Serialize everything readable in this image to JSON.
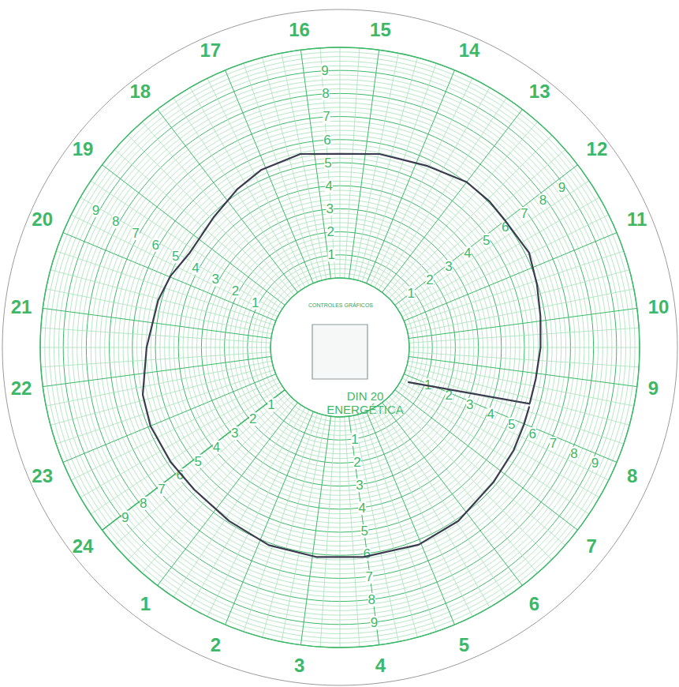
{
  "chart_data": {
    "type": "line",
    "title": "DIN 20",
    "subtitle": "ENERGÉTICA",
    "annotations": [
      "CONTROLES GRÁFICOS"
    ],
    "xlim": [
      0,
      24
    ],
    "xticks": [
      1,
      2,
      3,
      4,
      5,
      6,
      7,
      8,
      9,
      10,
      11,
      12,
      13,
      14,
      15,
      16,
      17,
      18,
      19,
      20,
      21,
      22,
      23,
      24
    ],
    "ylim": [
      0,
      10
    ],
    "yticks": [
      1,
      2,
      3,
      4,
      5,
      6,
      7,
      8,
      9
    ],
    "grid": true,
    "series": [
      {
        "color": "#3b3b4f",
        "x": [
          8.4,
          8.89,
          9.5,
          10.09,
          10.68,
          11.27,
          11.99,
          12.45,
          13.0,
          13.8,
          14.73,
          15.5,
          16.27,
          17.1,
          17.7,
          18.43,
          19.35,
          19.98,
          20.53,
          21.5,
          22.4,
          23.0,
          23.77,
          0.45,
          1.33,
          2.18,
          3.07,
          3.93,
          4.95,
          5.79,
          6.76,
          7.46,
          7.99,
          8.35
        ],
        "values": [
          5.58,
          5.6,
          5.7,
          5.8,
          5.97,
          6.17,
          6.03,
          6.06,
          6.03,
          5.72,
          5.55,
          5.38,
          5.55,
          5.41,
          5.17,
          4.86,
          4.69,
          4.97,
          5.14,
          5.38,
          5.79,
          5.89,
          5.86,
          5.82,
          5.92,
          6.1,
          6.13,
          6.13,
          6.2,
          6.1,
          5.85,
          5.75,
          5.65,
          5.6
        ]
      },
      {
        "color": "#3b3b4f",
        "x": [
          7.7,
          8.4
        ],
        "values": [
          0.3,
          5.6
        ]
      }
    ]
  }
}
